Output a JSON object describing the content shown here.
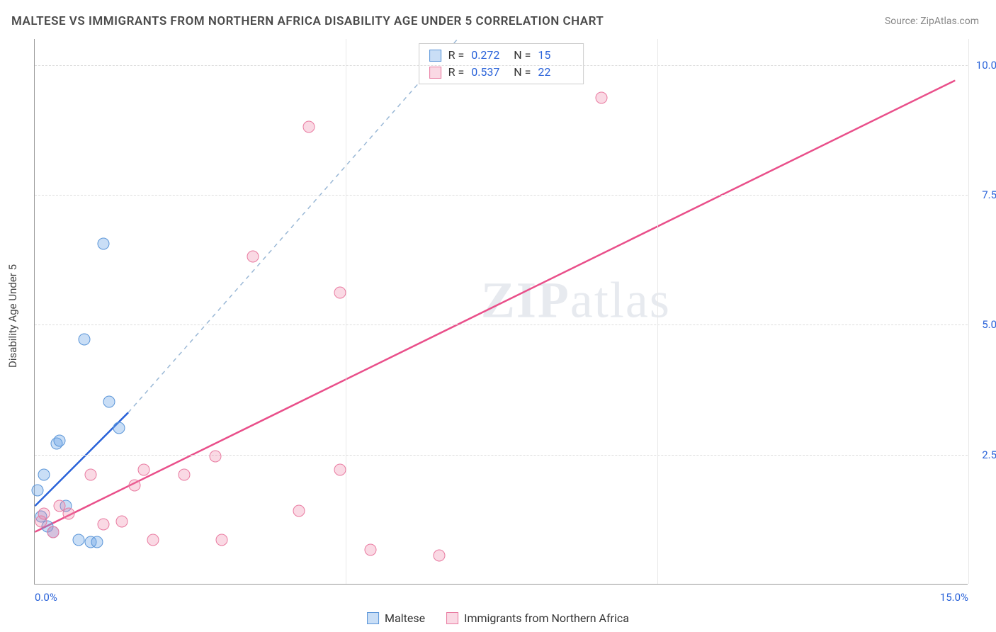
{
  "title": "MALTESE VS IMMIGRANTS FROM NORTHERN AFRICA DISABILITY AGE UNDER 5 CORRELATION CHART",
  "source": "Source: ZipAtlas.com",
  "ylabel": "Disability Age Under 5",
  "watermark_zip": "ZIP",
  "watermark_atlas": "atlas",
  "chart": {
    "type": "scatter",
    "xlim": [
      0,
      15
    ],
    "ylim": [
      0,
      10.5
    ],
    "xticks": [
      0,
      5,
      10,
      15
    ],
    "xtick_labels": [
      "0.0%",
      "",
      "",
      "15.0%"
    ],
    "yticks": [
      2.5,
      5.0,
      7.5,
      10.0
    ],
    "ytick_labels": [
      "2.5%",
      "5.0%",
      "7.5%",
      "10.0%"
    ],
    "grid_color": "#dddddd",
    "background_color": "#ffffff",
    "axis_color": "#999999",
    "marker_radius": 8.5,
    "series": [
      {
        "name": "Maltese",
        "fill": "rgba(100,160,230,0.35)",
        "stroke": "#5a95d8",
        "trend_solid_color": "#2962d9",
        "trend_dash_color": "#9ab8d6",
        "R": "0.272",
        "N": "15",
        "points": [
          [
            0.05,
            1.8
          ],
          [
            0.1,
            1.3
          ],
          [
            0.15,
            2.1
          ],
          [
            0.2,
            1.1
          ],
          [
            0.3,
            1.0
          ],
          [
            0.35,
            2.7
          ],
          [
            0.4,
            2.75
          ],
          [
            0.5,
            1.5
          ],
          [
            0.7,
            0.85
          ],
          [
            0.8,
            4.7
          ],
          [
            0.9,
            0.8
          ],
          [
            1.0,
            0.8
          ],
          [
            1.1,
            6.55
          ],
          [
            1.2,
            3.5
          ],
          [
            1.35,
            3.0
          ]
        ],
        "trend": {
          "x1": 0,
          "y1": 1.5,
          "x2_solid": 1.5,
          "y2_solid": 3.3,
          "x2": 6.8,
          "y2": 10.5
        }
      },
      {
        "name": "Immigrants from Northern Africa",
        "fill": "rgba(240,130,165,0.30)",
        "stroke": "#e97aa0",
        "trend_solid_color": "#e94f8a",
        "trend_dash_color": "#e94f8a",
        "R": "0.537",
        "N": "22",
        "points": [
          [
            0.1,
            1.2
          ],
          [
            0.15,
            1.35
          ],
          [
            0.3,
            1.0
          ],
          [
            0.4,
            1.5
          ],
          [
            0.55,
            1.35
          ],
          [
            0.9,
            2.1
          ],
          [
            1.1,
            1.15
          ],
          [
            1.4,
            1.2
          ],
          [
            1.6,
            1.9
          ],
          [
            1.75,
            2.2
          ],
          [
            1.9,
            0.85
          ],
          [
            2.4,
            2.1
          ],
          [
            2.9,
            2.45
          ],
          [
            3.0,
            0.85
          ],
          [
            3.5,
            6.3
          ],
          [
            4.25,
            1.4
          ],
          [
            4.4,
            8.8
          ],
          [
            4.9,
            2.2
          ],
          [
            4.9,
            5.6
          ],
          [
            5.4,
            0.65
          ],
          [
            6.5,
            0.55
          ],
          [
            9.1,
            9.35
          ]
        ],
        "trend": {
          "x1": 0,
          "y1": 1.0,
          "x2_solid": 14.8,
          "y2_solid": 9.7,
          "x2": 14.8,
          "y2": 9.7
        }
      }
    ]
  },
  "stats_labels": {
    "R": "R =",
    "N": "N ="
  },
  "legend": {
    "series1": "Maltese",
    "series2": "Immigrants from Northern Africa"
  }
}
